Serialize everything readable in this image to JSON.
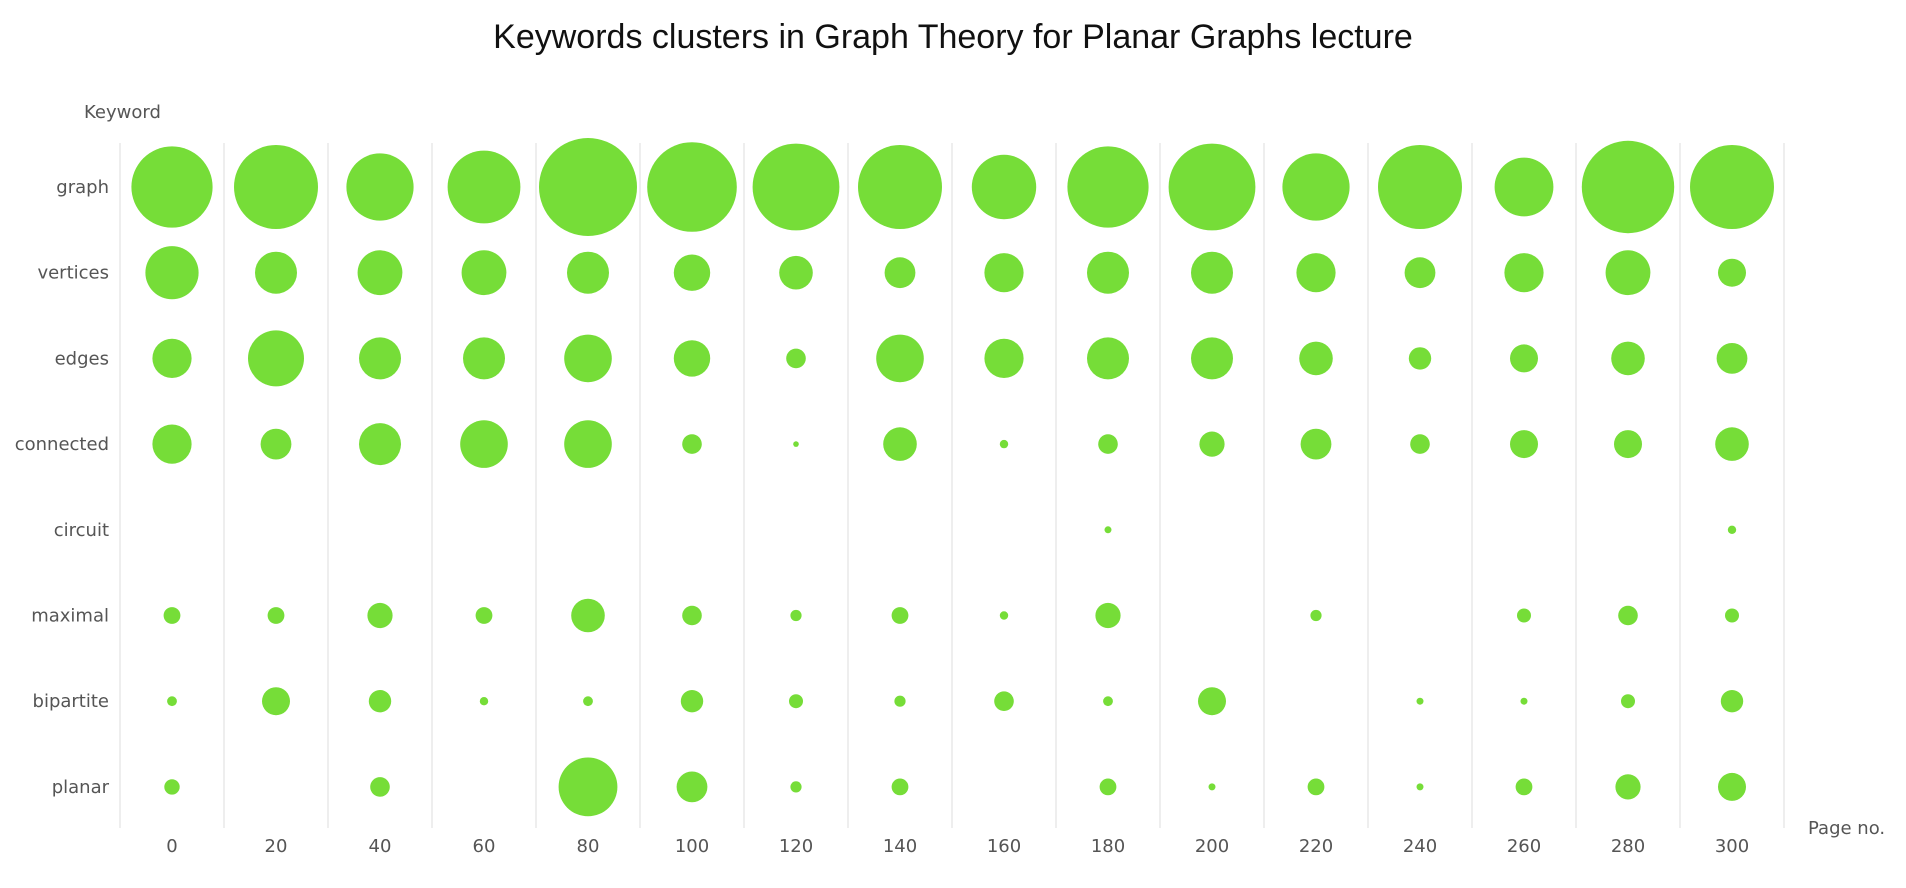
{
  "chart_data": {
    "type": "scatter",
    "title": "Keywords clusters in Graph Theory for Planar Graphs lecture",
    "xlabel": "Page no.",
    "ylabel": "Keyword",
    "x_categories": [
      "0",
      "20",
      "40",
      "60",
      "80",
      "100",
      "120",
      "140",
      "160",
      "180",
      "200",
      "220",
      "240",
      "260",
      "280",
      "300"
    ],
    "y_categories": [
      "graph",
      "vertices",
      "edges",
      "connected",
      "circuit",
      "maximal",
      "bipartite",
      "planar"
    ],
    "series": [
      {
        "keyword": "graph",
        "sizes": [
          29,
          30,
          24,
          26,
          35,
          32,
          31,
          30,
          23,
          29,
          31,
          24,
          30,
          21,
          33,
          30
        ]
      },
      {
        "keyword": "vertices",
        "sizes": [
          19,
          15,
          16,
          16,
          15,
          13,
          12,
          11,
          14,
          15,
          15,
          14,
          11,
          14,
          16,
          10
        ]
      },
      {
        "keyword": "edges",
        "sizes": [
          14,
          20,
          15,
          15,
          17,
          13,
          7,
          17,
          14,
          15,
          15,
          12,
          8,
          10,
          12,
          11
        ]
      },
      {
        "keyword": "connected",
        "sizes": [
          14,
          11,
          15,
          17,
          17,
          7,
          2,
          12,
          3,
          7,
          9,
          11,
          7,
          10,
          10,
          12
        ]
      },
      {
        "keyword": "circuit",
        "sizes": [
          0,
          0,
          0,
          0,
          0,
          0,
          0,
          0,
          0,
          2.5,
          0,
          0,
          0,
          0,
          0,
          3
        ]
      },
      {
        "keyword": "maximal",
        "sizes": [
          6,
          6,
          9,
          6,
          12,
          7,
          4,
          6,
          3,
          9,
          0,
          4,
          0,
          5,
          7,
          5
        ]
      },
      {
        "keyword": "bipartite",
        "sizes": [
          3.5,
          10,
          8,
          3,
          3.5,
          8,
          5,
          4,
          7,
          3.5,
          10,
          0,
          2.5,
          2.5,
          5,
          8
        ]
      },
      {
        "keyword": "planar",
        "sizes": [
          5.5,
          0,
          7,
          0,
          21,
          11,
          4,
          6,
          0,
          6,
          2.5,
          6,
          2.5,
          6,
          9,
          10
        ]
      }
    ],
    "marker_color": "#76dd38",
    "grid": "vertical",
    "grid_color": "#e9e9e9",
    "text_color": "#555555"
  }
}
